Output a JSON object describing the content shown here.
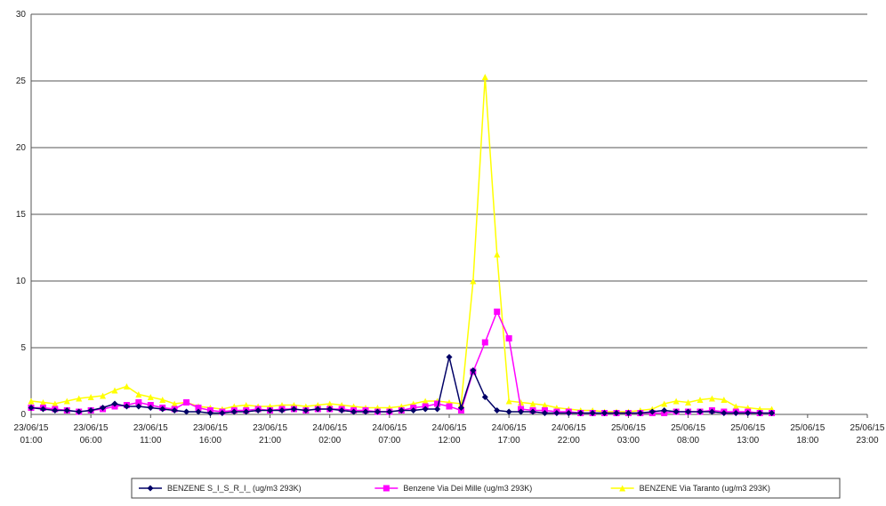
{
  "chart_data": {
    "type": "line",
    "categories": [
      "23/06/15 01:00",
      null,
      null,
      null,
      null,
      "23/06/15 06:00",
      null,
      null,
      null,
      null,
      "23/06/15 11:00",
      null,
      null,
      null,
      null,
      "23/06/15 16:00",
      null,
      null,
      null,
      null,
      "23/06/15 21:00",
      null,
      null,
      null,
      null,
      "24/06/15 02:00",
      null,
      null,
      null,
      null,
      "24/06/15 07:00",
      null,
      null,
      null,
      null,
      "24/06/15 12:00",
      null,
      null,
      null,
      null,
      "24/06/15 17:00",
      null,
      null,
      null,
      null,
      "24/06/15 22:00",
      null,
      null,
      null,
      null,
      "25/06/15 03:00",
      null,
      null,
      null,
      null,
      "25/06/15 08:00",
      null,
      null,
      null,
      null,
      "25/06/15 13:00",
      null,
      null,
      null,
      null,
      "25/06/15 18:00",
      null,
      null,
      null,
      null,
      "25/06/15 23:00"
    ],
    "series": [
      {
        "name": "BENZENE S_I_S_R_I_ (ug/m3 293K)",
        "color": "#000066",
        "marker": "diamond",
        "values": [
          0.5,
          0.4,
          0.3,
          0.3,
          0.2,
          0.3,
          0.5,
          0.8,
          0.6,
          0.6,
          0.5,
          0.4,
          0.3,
          0.2,
          0.2,
          0.1,
          0.1,
          0.2,
          0.2,
          0.3,
          0.3,
          0.3,
          0.4,
          0.3,
          0.4,
          0.4,
          0.3,
          0.2,
          0.2,
          0.2,
          0.2,
          0.3,
          0.3,
          0.4,
          0.4,
          4.3,
          0.5,
          3.3,
          1.3,
          0.3,
          0.2,
          0.2,
          0.2,
          0.1,
          0.1,
          0.1,
          0.1,
          0.1,
          0.1,
          0.1,
          0.1,
          0.1,
          0.2,
          0.3,
          0.2,
          0.2,
          0.2,
          0.2,
          0.1,
          0.1,
          0.1,
          0.1,
          0.1,
          null,
          null,
          null,
          null,
          null,
          null,
          null,
          null
        ]
      },
      {
        "name": "Benzene Via Dei Mille (ug/m3 293K)",
        "color": "#ff00ff",
        "marker": "square",
        "values": [
          0.5,
          0.5,
          0.4,
          0.3,
          0.2,
          0.3,
          0.4,
          0.6,
          0.7,
          0.9,
          0.7,
          0.5,
          0.4,
          0.9,
          0.5,
          0.3,
          0.2,
          0.3,
          0.3,
          0.4,
          0.3,
          0.4,
          0.4,
          0.3,
          0.4,
          0.4,
          0.4,
          0.3,
          0.3,
          0.2,
          0.2,
          0.3,
          0.5,
          0.6,
          0.8,
          0.6,
          0.3,
          3.2,
          5.4,
          7.7,
          5.7,
          0.4,
          0.3,
          0.3,
          0.2,
          0.2,
          0.1,
          0.1,
          0.1,
          0.1,
          0.1,
          0.1,
          0.1,
          0.1,
          0.2,
          0.2,
          0.2,
          0.3,
          0.2,
          0.2,
          0.2,
          0.1,
          0.1,
          null,
          null,
          null,
          null,
          null,
          null,
          null,
          null
        ]
      },
      {
        "name": "BENZENE Via Taranto (ug/m3 293K)",
        "color": "#ffff00",
        "marker": "triangle",
        "values": [
          1.0,
          0.9,
          0.8,
          1.0,
          1.2,
          1.3,
          1.4,
          1.8,
          2.1,
          1.5,
          1.3,
          1.1,
          0.8,
          0.9,
          0.6,
          0.5,
          0.4,
          0.6,
          0.7,
          0.6,
          0.6,
          0.7,
          0.7,
          0.6,
          0.7,
          0.8,
          0.7,
          0.6,
          0.5,
          0.5,
          0.5,
          0.6,
          0.8,
          1.0,
          1.0,
          0.9,
          0.8,
          10,
          25.3,
          12,
          1.0,
          0.9,
          0.8,
          0.7,
          0.5,
          0.4,
          0.3,
          0.3,
          0.2,
          0.2,
          0.2,
          0.3,
          0.4,
          0.8,
          1.0,
          0.9,
          1.1,
          1.2,
          1.1,
          0.6,
          0.5,
          0.4,
          0.4,
          null,
          null,
          null,
          null,
          null,
          null,
          null,
          null
        ]
      }
    ],
    "ylim": [
      0,
      30
    ],
    "yticks": [
      0,
      5,
      10,
      15,
      20,
      25,
      30
    ],
    "grid": true,
    "legend": "bottom"
  }
}
